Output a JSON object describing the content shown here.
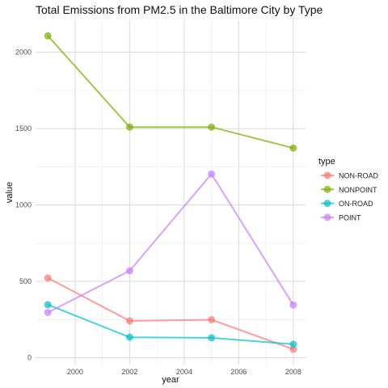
{
  "chart_data": {
    "type": "line",
    "title": "Total Emissions from PM2.5 in the Baltimore City by Type",
    "xlabel": "year",
    "ylabel": "value",
    "x": [
      1999,
      2002,
      2005,
      2008
    ],
    "xlim": [
      1998.55,
      2008.45
    ],
    "ylim": [
      -45,
      2210
    ],
    "xticks": [
      2000,
      2002,
      2004,
      2006,
      2008
    ],
    "yticks": [
      0,
      500,
      1000,
      1500,
      2000
    ],
    "grid": true,
    "legend": {
      "title": "type",
      "placement": "right"
    },
    "series": [
      {
        "name": "NON-ROAD",
        "color": "#F8766D",
        "values": [
          522,
          241,
          249,
          55
        ]
      },
      {
        "name": "NONPOINT",
        "color": "#7CAE00",
        "values": [
          2108,
          1510,
          1510,
          1373
        ]
      },
      {
        "name": "ON-ROAD",
        "color": "#00BFC4",
        "values": [
          347,
          134,
          130,
          88
        ]
      },
      {
        "name": "POINT",
        "color": "#C77CFF",
        "values": [
          296,
          569,
          1203,
          345
        ]
      }
    ]
  }
}
